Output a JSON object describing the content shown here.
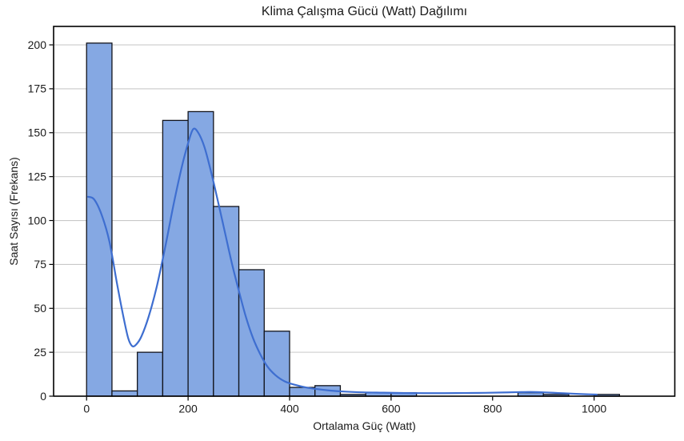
{
  "page": {
    "background": "#ffffff"
  },
  "chart_data": {
    "type": "bar",
    "subtype": "histogram_with_kde_curve",
    "title": "Klima Çalışma Gücü (Watt) Dağılımı",
    "xlabel": "Ortalama Güç (Watt)",
    "ylabel": "Saat Sayısı (Frekans)",
    "legend": "none",
    "grid": "horizontal-only",
    "bin_width": 50,
    "bin_edges": [
      0,
      50,
      100,
      150,
      200,
      250,
      300,
      350,
      400,
      450,
      500,
      550,
      600,
      650,
      700,
      750,
      800,
      850,
      900,
      950,
      1000,
      1050
    ],
    "counts": [
      201,
      3,
      25,
      157,
      162,
      108,
      72,
      37,
      5,
      6,
      1,
      2,
      2,
      0,
      0,
      0,
      0,
      2,
      1,
      0,
      1
    ],
    "x_ticks": [
      0,
      200,
      400,
      600,
      800,
      1000
    ],
    "y_ticks": [
      0,
      25,
      50,
      75,
      100,
      125,
      150,
      175,
      200
    ],
    "xlim": [
      -65,
      1159
    ],
    "ylim": [
      0,
      210.5
    ],
    "kde_series": {
      "name": "kde-density-line",
      "peak_value": 152,
      "peak_x": 210,
      "points": [
        [
          3,
          113.5
        ],
        [
          15,
          112
        ],
        [
          30,
          103
        ],
        [
          45,
          88
        ],
        [
          60,
          64
        ],
        [
          72,
          46
        ],
        [
          82,
          33
        ],
        [
          90,
          28.5
        ],
        [
          98,
          29.5
        ],
        [
          108,
          34
        ],
        [
          122,
          45
        ],
        [
          138,
          62
        ],
        [
          155,
          85
        ],
        [
          172,
          110
        ],
        [
          188,
          131
        ],
        [
          200,
          144
        ],
        [
          210,
          152
        ],
        [
          220,
          150
        ],
        [
          232,
          142
        ],
        [
          245,
          128
        ],
        [
          258,
          112
        ],
        [
          272,
          94
        ],
        [
          286,
          76
        ],
        [
          300,
          60
        ],
        [
          314,
          45
        ],
        [
          328,
          33
        ],
        [
          342,
          24
        ],
        [
          356,
          17
        ],
        [
          372,
          12
        ],
        [
          390,
          8.5
        ],
        [
          410,
          6.5
        ],
        [
          432,
          5
        ],
        [
          455,
          4
        ],
        [
          480,
          3.2
        ],
        [
          510,
          2.6
        ],
        [
          545,
          2.2
        ],
        [
          585,
          2.0
        ],
        [
          625,
          1.8
        ],
        [
          665,
          1.7
        ],
        [
          705,
          1.7
        ],
        [
          745,
          1.8
        ],
        [
          785,
          1.9
        ],
        [
          820,
          2.1
        ],
        [
          850,
          2.3
        ],
        [
          875,
          2.4
        ],
        [
          900,
          2.2
        ],
        [
          930,
          1.8
        ],
        [
          960,
          1.4
        ],
        [
          985,
          1.1
        ],
        [
          1005,
          0.9
        ]
      ]
    },
    "colors": {
      "bar_fill": "#85a8e3",
      "bar_edge": "#12141c",
      "kde_line": "#3e6ed0",
      "grid_line": "#c9c9c9",
      "spine": "#000000",
      "text": "#1a1a1a"
    }
  }
}
